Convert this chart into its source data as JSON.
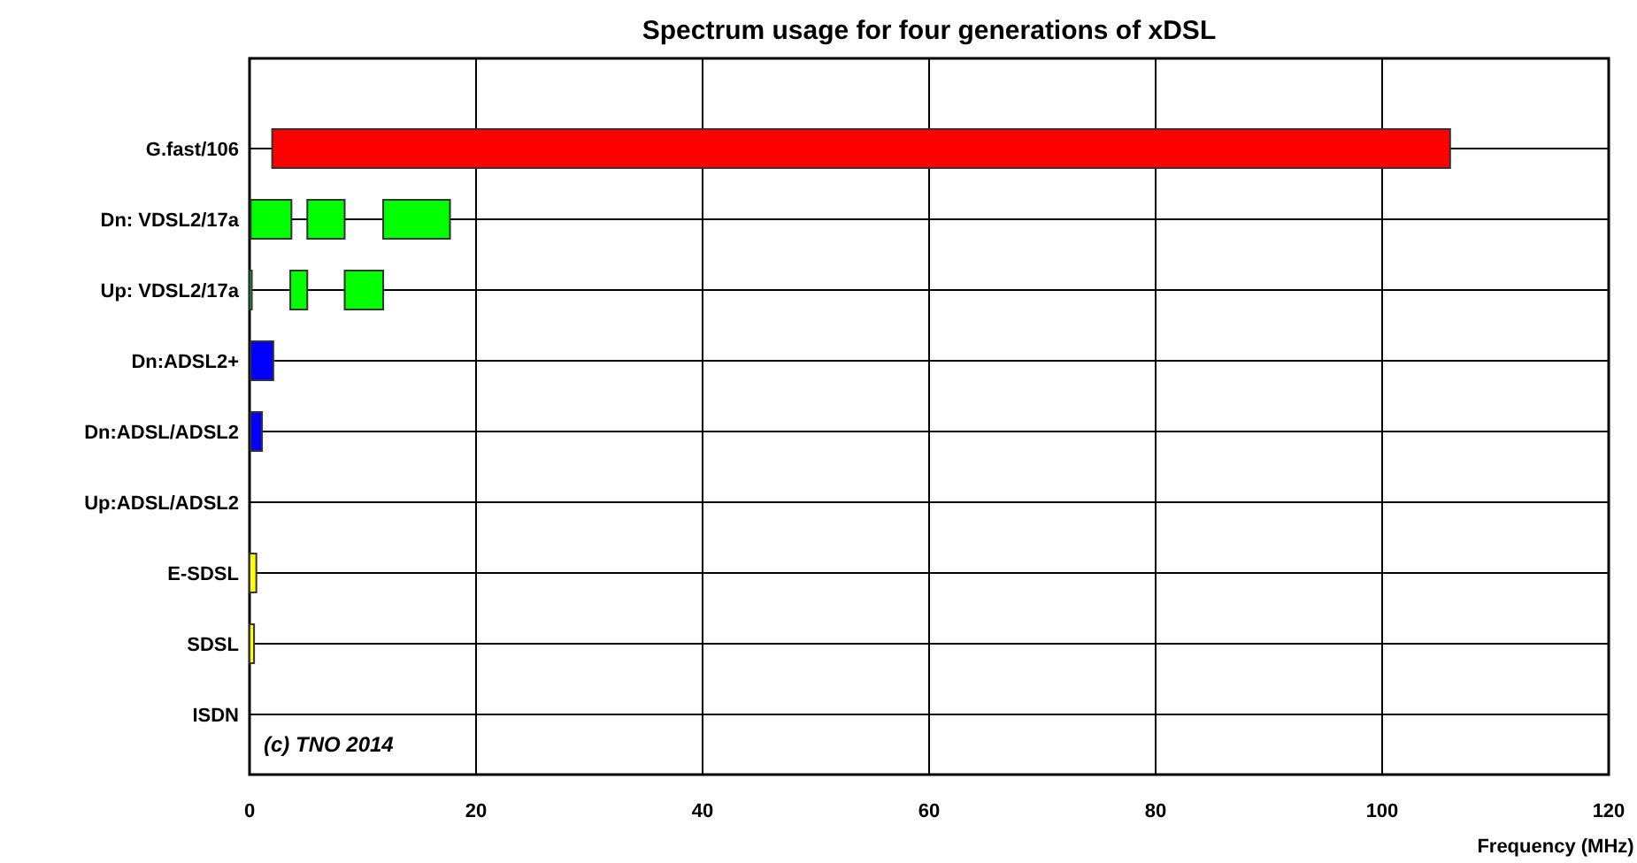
{
  "chart_data": {
    "type": "bar",
    "orientation": "horizontal",
    "title": "Spectrum usage for four generations of xDSL",
    "xlabel": "Frequency (MHz)",
    "categories": [
      "G.fast/106",
      "Dn: VDSL2/17a",
      "Up: VDSL2/17a",
      "Dn:ADSL2+",
      "Dn:ADSL/ADSL2",
      "Up:ADSL/ADSL2",
      "E-SDSL",
      "SDSL",
      "ISDN"
    ],
    "series": [
      {
        "base": [
          2,
          0.1,
          0,
          0.1,
          0.1,
          null,
          0,
          0,
          null
        ],
        "values": [
          104,
          3.6,
          0.2,
          2,
          1,
          null,
          0.6,
          0.4,
          null
        ],
        "colors": [
          "#ff0000",
          "#00ff00",
          "#00ff00",
          "#0000ff",
          "#0000ff",
          null,
          "#ffff00",
          "#ffff00",
          null
        ]
      },
      {
        "base": [
          null,
          5.1,
          3.6,
          null,
          null,
          null,
          null,
          null,
          null
        ],
        "values": [
          null,
          3.3,
          1.5,
          null,
          null,
          null,
          null,
          null,
          null
        ],
        "colors": [
          null,
          "#00ff00",
          "#00ff00",
          null,
          null,
          null,
          null,
          null,
          null
        ]
      },
      {
        "base": [
          null,
          11.8,
          8.4,
          null,
          null,
          null,
          null,
          null,
          null
        ],
        "values": [
          null,
          5.9,
          3.4,
          null,
          null,
          null,
          null,
          null,
          null
        ],
        "colors": [
          null,
          "#00ff00",
          "#00ff00",
          null,
          null,
          null,
          null,
          null,
          null
        ]
      }
    ],
    "xlim": [
      0,
      120
    ],
    "xticks": [
      0,
      20,
      40,
      60,
      80,
      100,
      120
    ],
    "grid": true,
    "annotations": [
      "(c) TNO 2014"
    ]
  }
}
